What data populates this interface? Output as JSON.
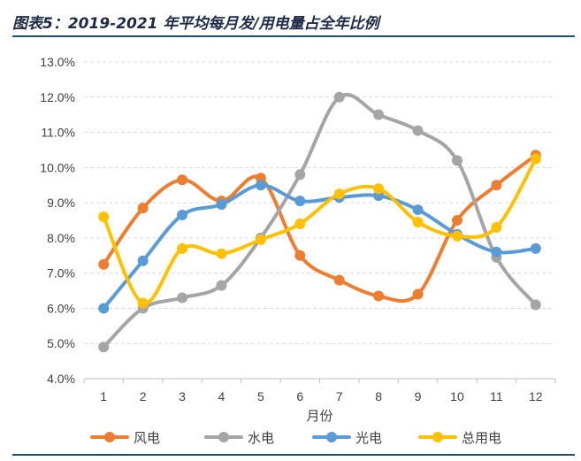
{
  "title": "图表5：2019-2021 年平均每月发/用电量占全年比例",
  "colors": {
    "wind": "#ED7D31",
    "hydro": "#A5A5A5",
    "solar": "#5B9BD5",
    "total": "#FFC000",
    "grid": "#d9d9d9",
    "rule": "#1f4e79"
  },
  "chart_data": {
    "type": "line",
    "smooth": true,
    "categories": [
      "1",
      "2",
      "3",
      "4",
      "5",
      "6",
      "7",
      "8",
      "9",
      "10",
      "11",
      "12"
    ],
    "xlabel": "月份",
    "ylabel": "",
    "ylim": [
      4.0,
      13.0
    ],
    "yticks": [
      "4.0%",
      "5.0%",
      "6.0%",
      "7.0%",
      "8.0%",
      "9.0%",
      "10.0%",
      "11.0%",
      "12.0%",
      "13.0%"
    ],
    "ytick_values": [
      4,
      5,
      6,
      7,
      8,
      9,
      10,
      11,
      12,
      13
    ],
    "grid": true,
    "legend": "bottom",
    "series": [
      {
        "name": "风电",
        "color_key": "wind",
        "values": [
          7.25,
          8.85,
          9.65,
          9.05,
          9.7,
          7.5,
          6.8,
          6.35,
          6.4,
          8.5,
          9.5,
          10.35
        ]
      },
      {
        "name": "水电",
        "color_key": "hydro",
        "values": [
          4.9,
          6.0,
          6.3,
          6.65,
          8.0,
          9.8,
          12.0,
          11.5,
          11.05,
          10.2,
          7.45,
          6.1
        ]
      },
      {
        "name": "光电",
        "color_key": "solar",
        "values": [
          6.0,
          7.35,
          8.65,
          8.95,
          9.5,
          9.05,
          9.15,
          9.2,
          8.8,
          8.1,
          7.6,
          7.7
        ]
      },
      {
        "name": "总用电",
        "color_key": "total",
        "values": [
          8.6,
          6.15,
          7.7,
          7.55,
          7.95,
          8.4,
          9.25,
          9.4,
          8.45,
          8.05,
          8.3,
          10.25
        ]
      }
    ]
  }
}
